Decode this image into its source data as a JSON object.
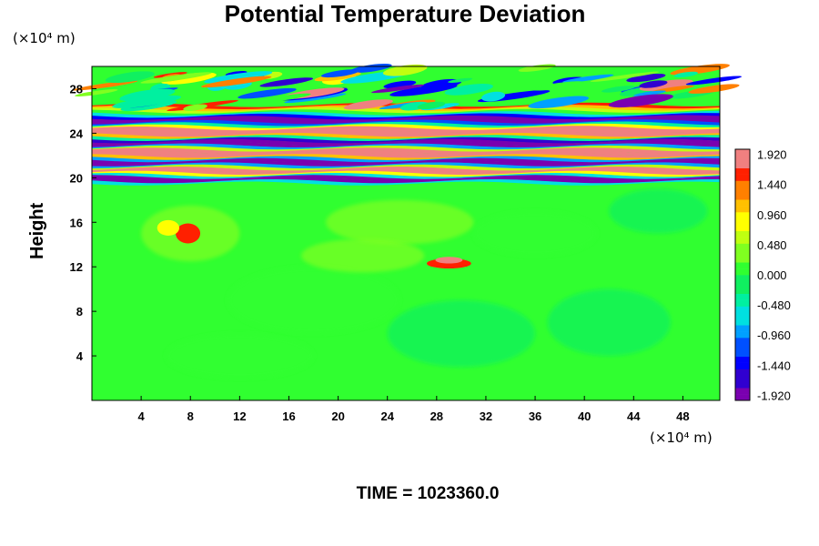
{
  "chart_data": {
    "type": "heatmap",
    "title": "Potential Temperature Deviation",
    "xlabel": "",
    "ylabel": "Height",
    "x_unit_label": "(×10⁴ m)",
    "y_unit_label": "(×10⁴ m)",
    "xlim": [
      0,
      51
    ],
    "ylim": [
      0,
      30
    ],
    "x_ticks": [
      "4",
      "8",
      "12",
      "16",
      "20",
      "24",
      "28",
      "32",
      "36",
      "40",
      "44",
      "48"
    ],
    "y_ticks": [
      "4",
      "8",
      "12",
      "16",
      "20",
      "24",
      "28"
    ],
    "colorbar_range": [
      -2.0,
      2.0
    ],
    "colorbar_ticks": [
      "1.920",
      "1.440",
      "0.960",
      "0.480",
      "0.000",
      "-0.480",
      "-0.960",
      "-1.440",
      "-1.920"
    ],
    "colormap": [
      "#7a00b0",
      "#3000d0",
      "#0000ff",
      "#0050ff",
      "#00a0ff",
      "#00e0e0",
      "#00f0a0",
      "#10f060",
      "#30ff30",
      "#80ff20",
      "#c0ff10",
      "#ffff00",
      "#ffc000",
      "#ff8000",
      "#ff2000",
      "#f08080"
    ],
    "features": [
      {
        "name": "upper wave layer",
        "y_range": [
          19.5,
          30
        ],
        "description": "banded alternating positive/negative deviation layers"
      },
      {
        "name": "lower near-zero region",
        "y_range": [
          0,
          19.5
        ],
        "value_approx": 0.0
      }
    ],
    "annotation": "TIME = 1023360.0"
  }
}
